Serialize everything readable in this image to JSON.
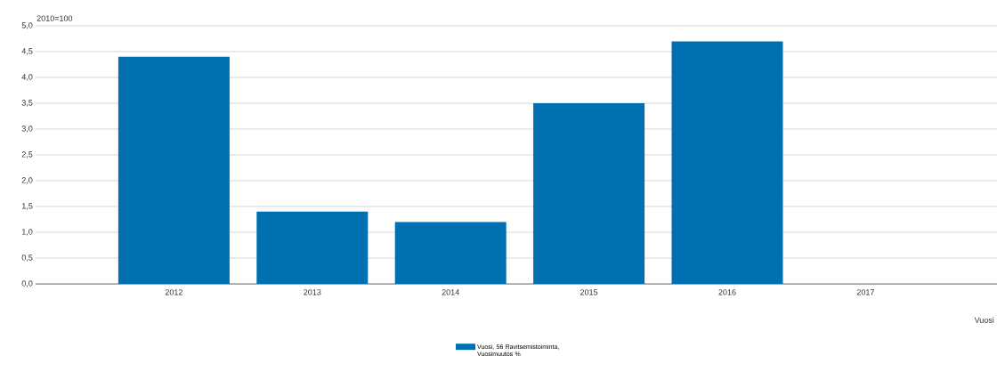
{
  "chart_data": {
    "type": "bar",
    "xlabel": "Vuosi",
    "annotations": [
      "2010=100"
    ],
    "categories": [
      "2012",
      "2013",
      "2014",
      "2015",
      "2016",
      "2017"
    ],
    "series": [
      {
        "name": "Vuosi, 56 Ravitsemistoiminta, Vuosimuutos %",
        "color": "#0070b0",
        "values": [
          4.4,
          1.4,
          1.2,
          3.5,
          4.7,
          null
        ]
      }
    ],
    "ylim": [
      0,
      5
    ],
    "yticks": [
      {
        "value": 0,
        "label": "0,0"
      },
      {
        "value": 0.5,
        "label": "0,5"
      },
      {
        "value": 1,
        "label": "1,0"
      },
      {
        "value": 1.5,
        "label": "1,5"
      },
      {
        "value": 2,
        "label": "2,0"
      },
      {
        "value": 2.5,
        "label": "2,5"
      },
      {
        "value": 3,
        "label": "3,0"
      },
      {
        "value": 3.5,
        "label": "3,5"
      },
      {
        "value": 4,
        "label": "4,0"
      },
      {
        "value": 4.5,
        "label": "4,5"
      },
      {
        "value": 5,
        "label": "5,0"
      }
    ],
    "grid": "y",
    "legend": "bottom"
  }
}
